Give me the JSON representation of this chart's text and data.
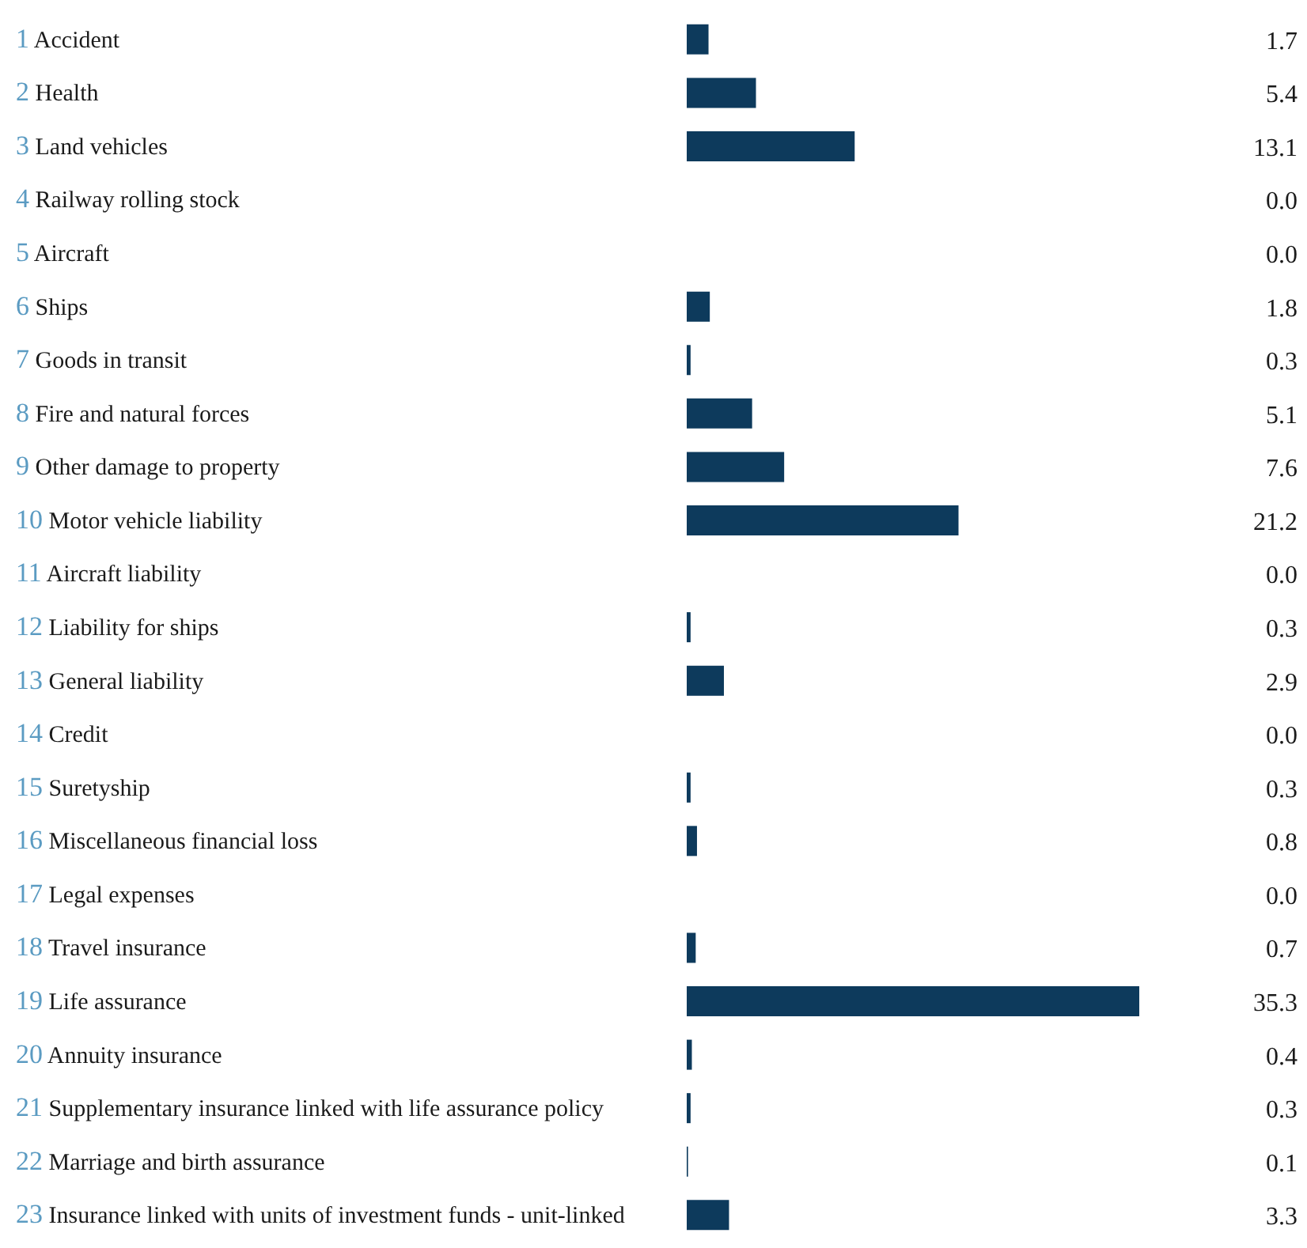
{
  "chart_data": {
    "type": "bar",
    "orientation": "horizontal",
    "categories": [
      "1 Accident",
      "2 Health",
      "3 Land vehicles",
      "4 Railway rolling stock",
      "5 Aircraft",
      "6 Ships",
      "7 Goods in transit",
      "8 Fire and natural forces",
      "9 Other damage to property",
      "10 Motor vehicle liability",
      "11 Aircraft liability",
      "12 Liability for ships",
      "13 General liability",
      "14 Credit",
      "15 Suretyship",
      "16 Miscellaneous financial loss",
      "17 Legal expenses",
      "18 Travel insurance",
      "19 Life assurance",
      "20 Annuity insurance",
      "21 Supplementary insurance linked with life assurance policy",
      "22 Marriage and birth assurance",
      "23 Insurance linked with units of investment funds - unit-linked"
    ],
    "values": [
      1.7,
      5.4,
      13.1,
      0.0,
      0.0,
      1.8,
      0.3,
      5.1,
      7.6,
      21.2,
      0.0,
      0.3,
      2.9,
      0.0,
      0.3,
      0.8,
      0.0,
      0.7,
      35.3,
      0.4,
      0.3,
      0.1,
      3.3
    ],
    "value_labels": [
      "1.7",
      "5.4",
      "13.1",
      "0.0",
      "0.0",
      "1.8",
      "0.3",
      "5.1",
      "7.6",
      "21.2",
      "0.0",
      "0.3",
      "2.9",
      "0.0",
      "0.3",
      "0.8",
      "0.0",
      "0.7",
      "35.3",
      "0.4",
      "0.3",
      "0.1",
      "3.3"
    ],
    "colors": [
      "#0d3a5c",
      "#0d3a5c",
      "#0d3a5c",
      "#0d3a5c",
      "#0d3a5c",
      "#0d3a5c",
      "#0d3a5c",
      "#0d3a5c",
      "#0d3a5c",
      "#0d3a5c",
      "#0d3a5c",
      "#0d3a5c",
      "#0d3a5c",
      "#e0262f",
      "#0d3a5c",
      "#0d3a5c",
      "#0d3a5c",
      "#0d3a5c",
      "#0d3a5c",
      "#0d3a5c",
      "#0d3a5c",
      "#0d3a5c",
      "#0d3a5c"
    ],
    "grid": false,
    "legend": false
  }
}
